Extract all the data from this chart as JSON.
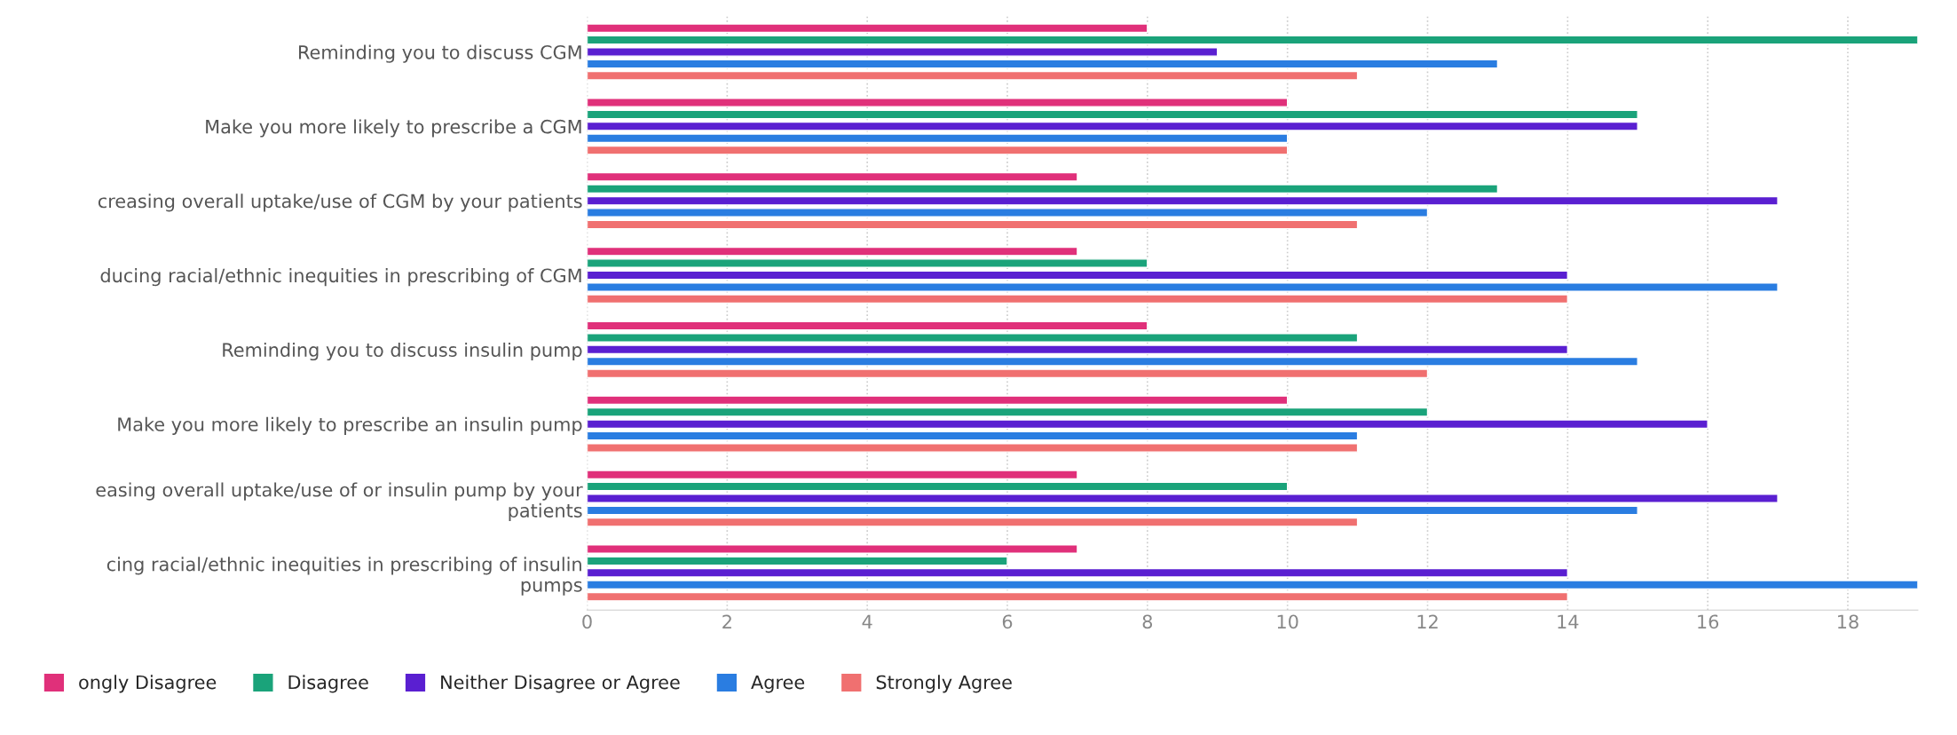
{
  "chart_data": {
    "type": "bar",
    "orientation": "horizontal",
    "categories": [
      "Reminding you to discuss CGM",
      "Make you more likely to prescribe a CGM",
      "creasing overall uptake/use of CGM by your patients",
      "ducing racial/ethnic inequities in prescribing of CGM",
      "Reminding you to discuss insulin pump",
      "Make you more likely to prescribe an insulin pump",
      "easing overall uptake/use of or insulin pump by your\npatients",
      "cing racial/ethnic inequities in prescribing of insulin\npumps"
    ],
    "series": [
      {
        "name": "ongly Disagree",
        "color": "#e0307a",
        "values": [
          8,
          10,
          7,
          7,
          8,
          10,
          7,
          7
        ]
      },
      {
        "name": "Disagree",
        "color": "#1aa37a",
        "values": [
          19,
          15,
          13,
          8,
          11,
          12,
          10,
          6
        ]
      },
      {
        "name": "Neither Disagree or Agree",
        "color": "#5a1fd1",
        "values": [
          9,
          15,
          17,
          14,
          14,
          16,
          17,
          14
        ]
      },
      {
        "name": "Agree",
        "color": "#2a7de1",
        "values": [
          13,
          10,
          12,
          17,
          15,
          11,
          15,
          19
        ]
      },
      {
        "name": "Strongly Agree",
        "color": "#f07070",
        "values": [
          11,
          10,
          11,
          14,
          12,
          11,
          11,
          14
        ]
      }
    ],
    "xlim": [
      0,
      19
    ],
    "xticks": [
      0,
      2,
      4,
      6,
      8,
      10,
      12,
      14,
      16,
      18
    ],
    "grid": "x",
    "legend": "bottom"
  }
}
